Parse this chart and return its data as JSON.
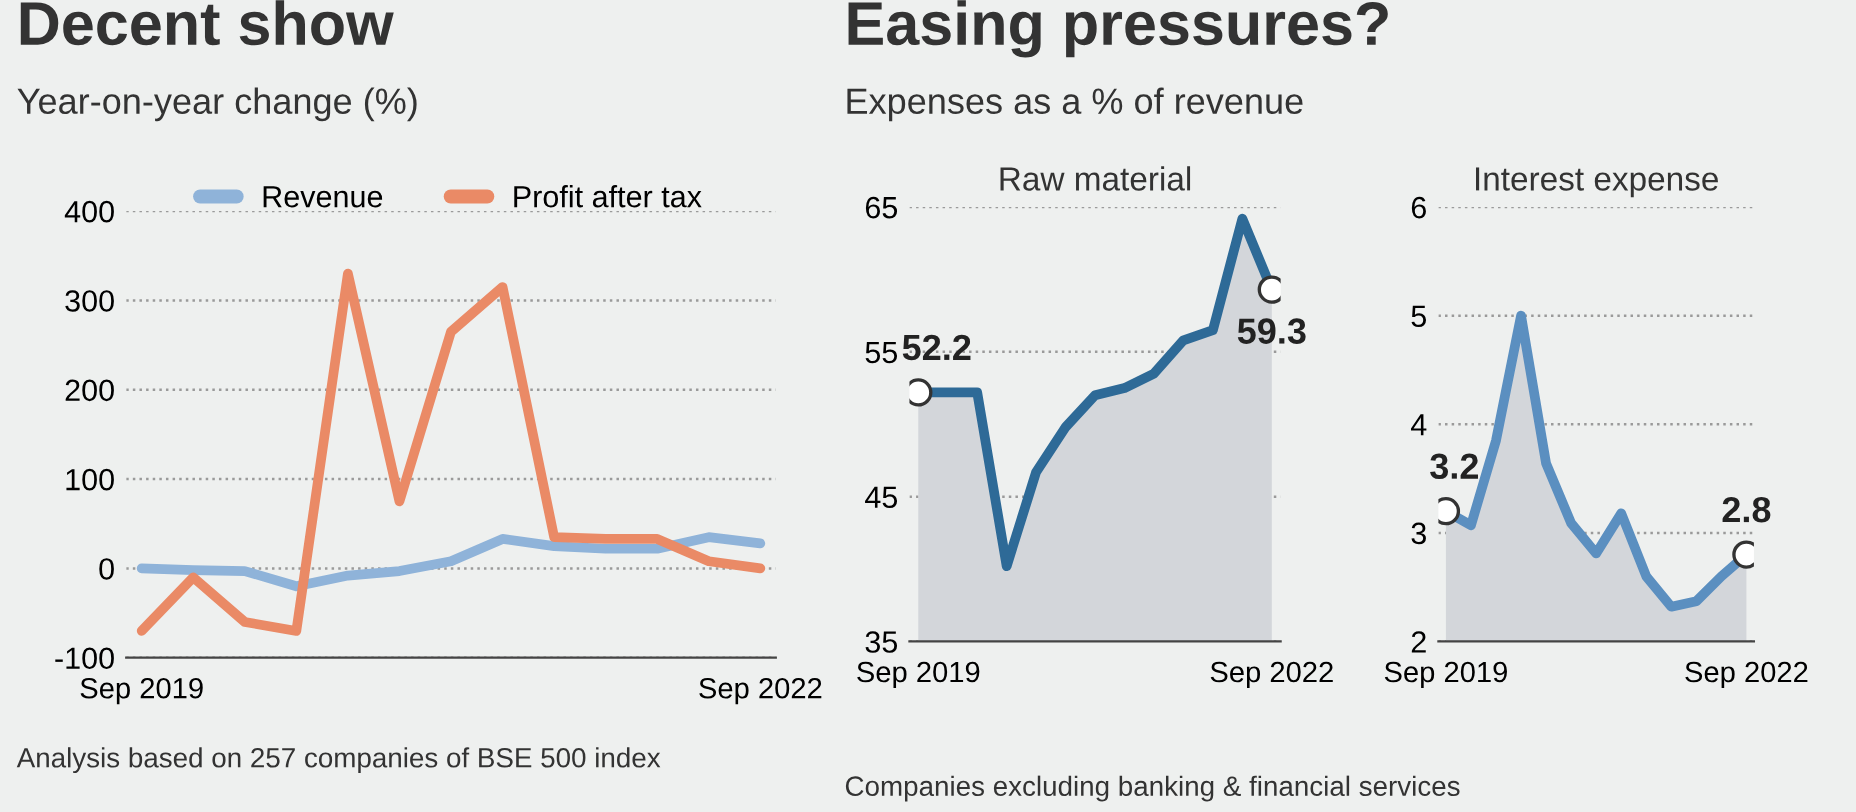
{
  "chart_data": [
    {
      "type": "line",
      "title": "Decent show",
      "subtitle": "Year-on-year change (%)",
      "categories": [
        "Sep 2019",
        null,
        null,
        null,
        null,
        null,
        null,
        null,
        null,
        null,
        null,
        null,
        "Sep 2022"
      ],
      "series": [
        {
          "name": "Revenue",
          "color": "#8fb3d9",
          "values": [
            0,
            -2,
            -3,
            -20,
            -8,
            -3,
            8,
            33,
            25,
            22,
            22,
            35,
            28
          ]
        },
        {
          "name": "Profit after tax",
          "color": "#ea8a66",
          "values": [
            -70,
            -10,
            -60,
            -70,
            330,
            75,
            265,
            315,
            35,
            33,
            33,
            8,
            0
          ]
        }
      ],
      "ylim": [
        -100,
        400
      ],
      "yticks": [
        -100,
        0,
        100,
        200,
        300,
        400
      ],
      "grid": "y",
      "legend": "top",
      "line_style": "solid",
      "annotations": [
        "Analysis based on 257 companies of BSE 500 index"
      ]
    },
    {
      "type": "area",
      "title": "Raw material",
      "categories": [
        "Sep 2019",
        null,
        null,
        null,
        null,
        null,
        null,
        null,
        null,
        null,
        null,
        null,
        "Sep 2022"
      ],
      "series": [
        {
          "color": "#2e6a97",
          "values": [
            52.2,
            52.2,
            52.2,
            40.2,
            46.7,
            49.8,
            52.0,
            52.5,
            53.5,
            55.8,
            56.5,
            64.2,
            59.3
          ],
          "value_labels": [
            "52.2",
            null,
            null,
            null,
            null,
            null,
            null,
            null,
            null,
            null,
            null,
            null,
            "59.3"
          ]
        }
      ],
      "ylim": [
        35,
        65
      ],
      "yticks": [
        35,
        45,
        55,
        65
      ],
      "grid": "y",
      "annotations": [
        "Easing pressures?",
        "Expenses as a % of revenue",
        "Companies excluding banking & financial services"
      ]
    },
    {
      "type": "area",
      "title": "Interest expense",
      "categories": [
        "Sep 2019",
        null,
        null,
        null,
        null,
        null,
        null,
        null,
        null,
        null,
        null,
        null,
        "Sep 2022"
      ],
      "series": [
        {
          "color": "#5b8fc0",
          "values": [
            3.2,
            3.07,
            3.85,
            5.0,
            3.64,
            3.09,
            2.81,
            3.18,
            2.6,
            2.32,
            2.37,
            2.6,
            2.8
          ],
          "value_labels": [
            "3.2",
            null,
            null,
            null,
            null,
            null,
            null,
            null,
            null,
            null,
            null,
            null,
            "2.8"
          ]
        }
      ],
      "ylim": [
        2,
        6
      ],
      "yticks": [
        2,
        3,
        4,
        5,
        6
      ],
      "grid": "y"
    }
  ]
}
